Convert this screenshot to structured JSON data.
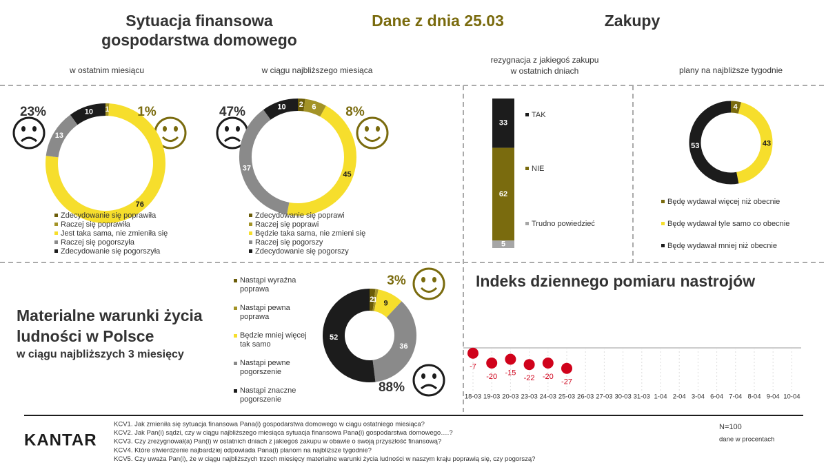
{
  "header": {
    "title": [
      "Sytuacja finansowa",
      "gospodarstwa domowego"
    ],
    "date": "Dane z dnia 25.03",
    "section": "Zakupy"
  },
  "chart_data": [
    {
      "type": "donut",
      "title": [
        "w ostatnim miesiącu"
      ],
      "categories": [
        "Zdecydowanie się poprawiła",
        "Raczej się poprawiła",
        "Jest taka sama, nie zmieniła się",
        "Raczej się pogorszyła",
        "Zdecydowanie się pogorszyła"
      ],
      "values": [
        0,
        1,
        76,
        13,
        10
      ],
      "colors": [
        "#6b5c08",
        "#a39326",
        "#f6de2c",
        "#8a8a8a",
        "#1c1c1c"
      ],
      "annotations": [
        "23%",
        "1%"
      ]
    },
    {
      "type": "donut",
      "title": [
        "w ciągu najbliższego miesiąca"
      ],
      "categories": [
        "Zdecydowanie się poprawi",
        "Raczej się poprawi",
        "Będzie taka sama, nie zmieni się",
        "Raczej się pogorszy",
        "Zdecydowanie się pogorszy"
      ],
      "values": [
        2,
        6,
        45,
        37,
        10
      ],
      "colors": [
        "#6b5c08",
        "#a39326",
        "#f6de2c",
        "#8a8a8a",
        "#1c1c1c"
      ],
      "annotations": [
        "47%",
        "8%"
      ]
    },
    {
      "type": "stacked_bar",
      "title": [
        "rezygnacja z jakiegoś zakupu",
        "w ostatnich dniach"
      ],
      "categories": [
        "TAK",
        "NIE",
        "Trudno powiedzieć"
      ],
      "values": [
        33,
        62,
        5
      ],
      "colors": [
        "#1c1c1c",
        "#7a6b0e",
        "#a6a6a6"
      ]
    },
    {
      "type": "donut",
      "title": [
        "plany na najbliższe tygodnie"
      ],
      "categories": [
        "Będę wydawał więcej niż obecnie",
        "Będę wydawał tyle samo co obecnie",
        "Będę wydawał mniej niż obecnie"
      ],
      "values": [
        4,
        43,
        53
      ],
      "colors": [
        "#7a6b0e",
        "#f6de2c",
        "#1c1c1c"
      ]
    },
    {
      "type": "donut",
      "title": [
        "Materialne warunki życia",
        "ludności w Polsce"
      ],
      "subtitle": "w ciągu najbliższych 3 miesięcy",
      "categories": [
        "Nastąpi wyraźna poprawa",
        "Nastąpi pewna poprawa",
        "Będzie mniej więcej tak samo",
        "Nastąpi pewne pogorszenie",
        "Nastąpi znaczne pogorszenie"
      ],
      "values": [
        2,
        1,
        9,
        36,
        52
      ],
      "colors": [
        "#6b5c08",
        "#a39326",
        "#f6de2c",
        "#8a8a8a",
        "#1c1c1c"
      ],
      "annotations": [
        "3%",
        "88%"
      ]
    },
    {
      "type": "dot",
      "title": [
        "Indeks dziennego pomiaru nastrojów"
      ],
      "categories": [
        "18-03",
        "19-03",
        "20-03",
        "23-03",
        "24-03",
        "25-03",
        "26-03",
        "27-03",
        "30-03",
        "31-03",
        "1-04",
        "2-04",
        "3-04",
        "6-04",
        "7-04",
        "8-04",
        "9-04",
        "10-04"
      ],
      "values": [
        -7,
        -20,
        -15,
        -22,
        -20,
        -27,
        null,
        null,
        null,
        null,
        null,
        null,
        null,
        null,
        null,
        null,
        null,
        null
      ],
      "color": "#d0021b",
      "ylim": [
        -60,
        0
      ]
    }
  ],
  "footer": {
    "brand": "KANTAR",
    "questions": [
      "KCV1. Jak zmieniła się sytuacja finansowa Pana(i) gospodarstwa domowego w ciągu ostatniego miesiąca?",
      "KCV2. Jak Pan(i) sądzi, czy w ciągu najbliższego miesiąca sytuacja finansowa Pana(i) gospodarstwa domowego….?",
      "KCV3. Czy zrezygnował(a) Pan(i) w ostatnich dniach z jakiegoś zakupu w obawie o swoją przyszłość finansową?",
      "KCV4. Które stwierdzenie najbardziej odpowiada Pana(i) planom na najbliższe tygodnie?",
      "KCV5. Czy uważa Pan(i), że w ciągu najbliższych trzech miesięcy materialne warunki życia ludności w naszym kraju poprawią się, czy pogorszą?"
    ],
    "sample": "N=100",
    "unit": "dane w procentach"
  }
}
